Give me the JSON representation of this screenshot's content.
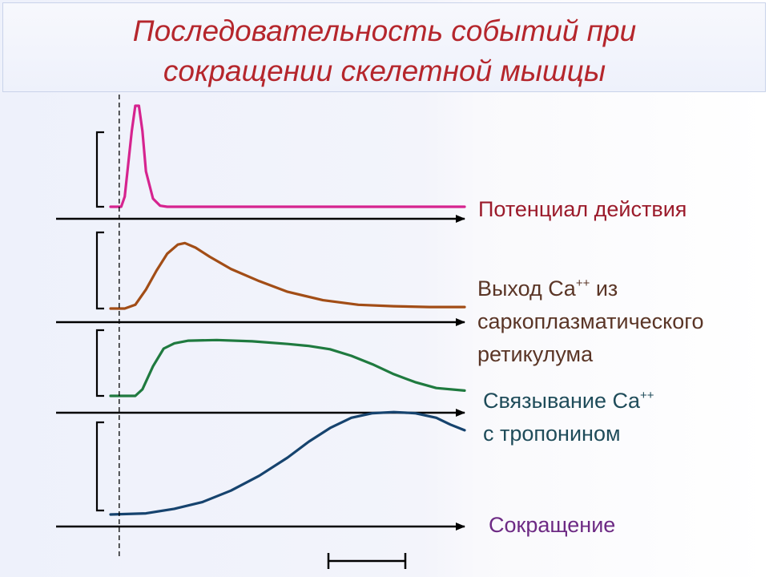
{
  "title": {
    "line1": "Последовательность событий при",
    "line2": "сокращении скелетной мышцы"
  },
  "labels": {
    "action_potential": "Потенциал действия",
    "ca_release_line1_prefix": "Выход Ca",
    "ca_release_line1_sup": "++",
    "ca_release_line1_suffix": " из",
    "ca_release_line2": "саркоплазматического",
    "ca_release_line3": "ретикулума",
    "troponin_line1_prefix": "Связывание Ca",
    "troponin_line1_sup": "++",
    "troponin_line2": "с тропонином",
    "contraction": "Сокращение"
  },
  "chart_data": {
    "type": "line",
    "x_range": [
      0,
      100
    ],
    "y_range": [
      0,
      1
    ],
    "stimulus_marker_x": 2,
    "series": [
      {
        "name": "Потенциал действия",
        "color": "#d6248f",
        "x": [
          0,
          3,
          4,
          6,
          7,
          8,
          9,
          10,
          12,
          14,
          16,
          100
        ],
        "y": [
          0,
          0,
          0.1,
          0.75,
          1.0,
          1.0,
          0.75,
          0.35,
          0.08,
          0.01,
          0,
          0
        ]
      },
      {
        "name": "Выход Ca++ из саркоплазматического ретикулума",
        "color": "#a24d16",
        "x": [
          0,
          4,
          7,
          10,
          13,
          16,
          19,
          21,
          24,
          28,
          34,
          42,
          50,
          60,
          70,
          80,
          90,
          100
        ],
        "y": [
          0,
          0,
          0.05,
          0.25,
          0.5,
          0.72,
          0.84,
          0.86,
          0.8,
          0.68,
          0.52,
          0.36,
          0.22,
          0.11,
          0.05,
          0.03,
          0.02,
          0.02
        ]
      },
      {
        "name": "Связывание Ca++ с тропонином",
        "color": "#1f7a3f",
        "x": [
          0,
          7,
          9,
          12,
          15,
          18,
          22,
          30,
          40,
          50,
          56,
          62,
          68,
          74,
          80,
          86,
          92,
          100
        ],
        "y": [
          0,
          0,
          0.1,
          0.45,
          0.72,
          0.8,
          0.84,
          0.85,
          0.83,
          0.79,
          0.76,
          0.71,
          0.61,
          0.48,
          0.33,
          0.21,
          0.12,
          0.08
        ]
      },
      {
        "name": "Сокращение",
        "color": "#16436e",
        "x": [
          0,
          10,
          18,
          26,
          34,
          42,
          50,
          56,
          62,
          68,
          74,
          80,
          86,
          92,
          96,
          100
        ],
        "y": [
          0,
          0.01,
          0.05,
          0.11,
          0.21,
          0.34,
          0.5,
          0.64,
          0.76,
          0.85,
          0.89,
          0.9,
          0.89,
          0.85,
          0.79,
          0.74
        ]
      }
    ]
  }
}
